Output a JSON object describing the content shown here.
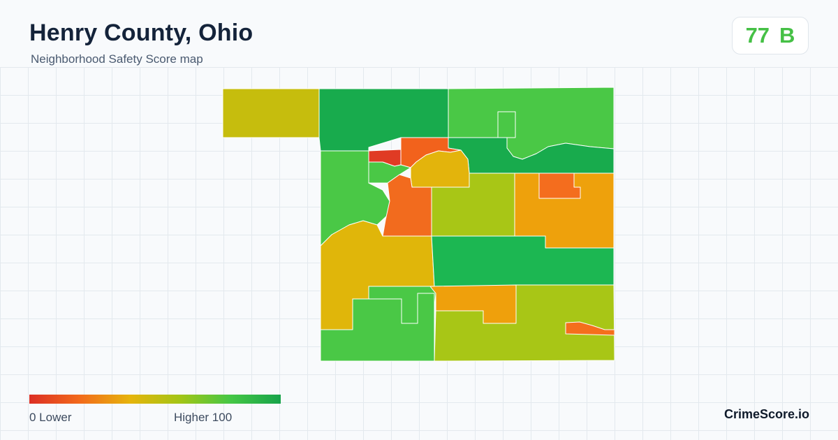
{
  "header": {
    "title": "Henry County, Ohio",
    "subtitle": "Neighborhood Safety Score map"
  },
  "score": {
    "value": "77",
    "grade": "B",
    "color": "#45c045"
  },
  "legend": {
    "min_label": "0  Lower",
    "max_label": "Higher  100",
    "gradient": [
      "#dc2f24",
      "#f26a1b",
      "#e6b40c",
      "#a3c516",
      "#45c745",
      "#17a34a"
    ]
  },
  "brand": "CrimeScore.io",
  "map": {
    "regions": [
      {
        "name": "northwest-detached",
        "color": "#c6bd0d"
      },
      {
        "name": "north-central",
        "color": "#18ab4d"
      },
      {
        "name": "northeast",
        "color": "#4ac846"
      },
      {
        "name": "northeast-river-band",
        "color": "#18ab4d"
      },
      {
        "name": "northeast-small-block",
        "color": "#4ac846"
      },
      {
        "name": "west-upper",
        "color": "#4ac846"
      },
      {
        "name": "napoleon-west-red",
        "color": "#e03b24"
      },
      {
        "name": "napoleon-center-orange",
        "color": "#f2621c"
      },
      {
        "name": "napoleon-south-orange",
        "color": "#f26b1e"
      },
      {
        "name": "napoleon-east-yellow",
        "color": "#e3b40c"
      },
      {
        "name": "napoleon-west-green",
        "color": "#4ac846"
      },
      {
        "name": "central-yellowgreen",
        "color": "#a8c616"
      },
      {
        "name": "east-orange-large",
        "color": "#eea10c"
      },
      {
        "name": "east-orange-pocket",
        "color": "#f46d1e"
      },
      {
        "name": "southwest-yellow",
        "color": "#e0b60a"
      },
      {
        "name": "center-green-band",
        "color": "#1cb752"
      },
      {
        "name": "south-center-green",
        "color": "#4ac846"
      },
      {
        "name": "southwest-green",
        "color": "#4ac846"
      },
      {
        "name": "south-orange",
        "color": "#efa00c"
      },
      {
        "name": "southeast-yellowgreen",
        "color": "#a8c616"
      },
      {
        "name": "southeast-orange-strip",
        "color": "#f56f1c"
      }
    ]
  }
}
